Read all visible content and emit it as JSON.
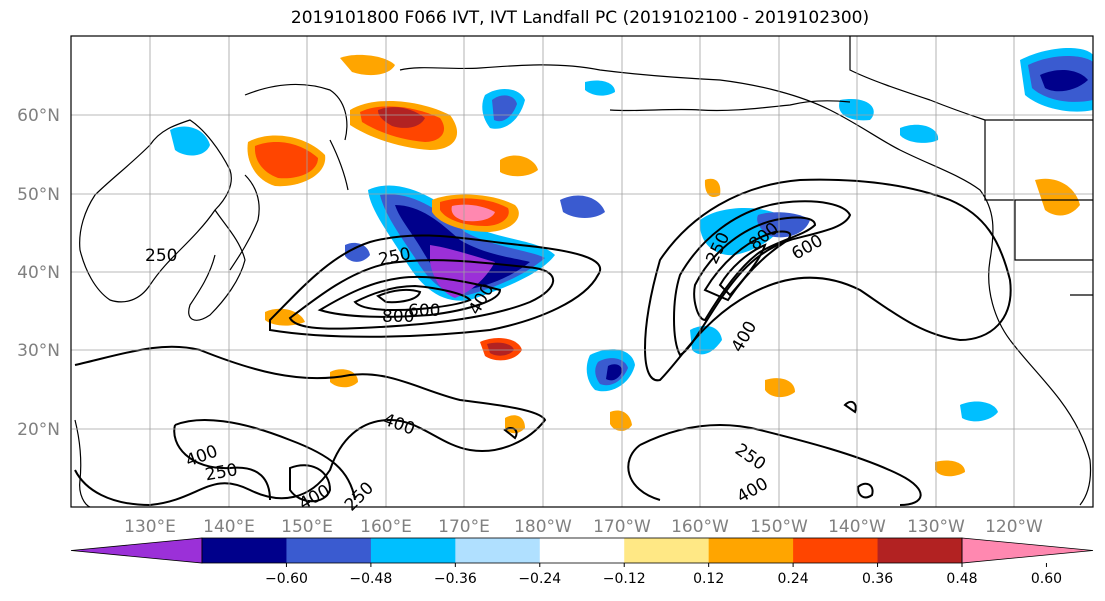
{
  "title": "2019101800 F066 IVT, IVT Landfall PC (2019102100 - 2019102300)",
  "lat_labels": [
    "60°N",
    "50°N",
    "40°N",
    "30°N",
    "20°N"
  ],
  "lon_labels": [
    "130°E",
    "140°E",
    "150°E",
    "160°E",
    "170°E",
    "180°W",
    "170°W",
    "160°W",
    "150°W",
    "140°W",
    "130°W",
    "120°W"
  ],
  "colorbar": {
    "colors": [
      "#9b30d8",
      "#00008b",
      "#3a5bd0",
      "#00bfff",
      "#b0e0ff",
      "#ffffff",
      "#ffe885",
      "#ffa500",
      "#ff4500",
      "#b22222",
      "#ff88b0"
    ],
    "ticks": [
      "−0.60",
      "−0.48",
      "−0.36",
      "−0.24",
      "−0.12",
      "0.12",
      "0.24",
      "0.36",
      "0.48",
      "0.60"
    ]
  },
  "contour_labels": [
    {
      "id": "c250a",
      "text": "250"
    },
    {
      "id": "c250b",
      "text": "250"
    },
    {
      "id": "c800a",
      "text": "800"
    },
    {
      "id": "c600a",
      "text": "600"
    },
    {
      "id": "c400a",
      "text": "400"
    },
    {
      "id": "c250c",
      "text": "250"
    },
    {
      "id": "c800b",
      "text": "800"
    },
    {
      "id": "c600b",
      "text": "600"
    },
    {
      "id": "c400b",
      "text": "400"
    },
    {
      "id": "c400c",
      "text": "400"
    },
    {
      "id": "c400d",
      "text": "400"
    },
    {
      "id": "c250d",
      "text": "250"
    },
    {
      "id": "c400e",
      "text": "400"
    },
    {
      "id": "c250e",
      "text": "250"
    },
    {
      "id": "c250f",
      "text": "250"
    },
    {
      "id": "c400f",
      "text": "400"
    }
  ]
}
